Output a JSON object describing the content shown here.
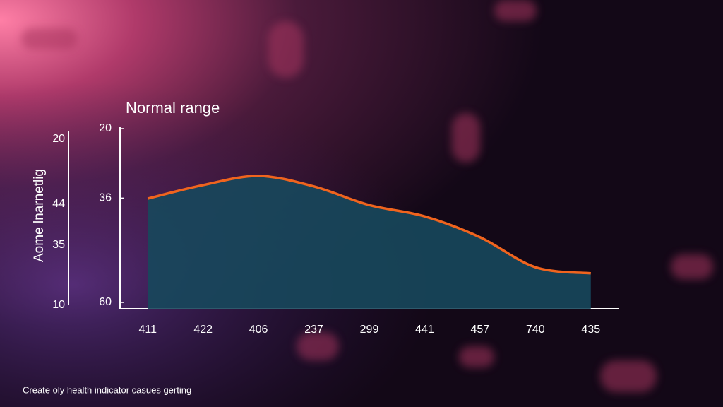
{
  "chart_data": {
    "type": "area",
    "title": "Normal range",
    "y_label": "Aome lnarnetlig",
    "outer_axis_labels": [
      "20",
      "44",
      "35",
      "10"
    ],
    "caption": "Create oly health indicator casues gerting",
    "categories": [
      "411",
      "422",
      "406",
      "237",
      "299",
      "441",
      "457",
      "740",
      "435"
    ],
    "values": [
      36.1,
      33,
      30.9,
      33.3,
      37.6,
      40.2,
      45,
      51.9,
      53.3
    ],
    "color": "#f0641e",
    "fill": "#17485c",
    "ylim": [
      60,
      20
    ],
    "yticks": [
      20,
      36,
      60
    ]
  }
}
